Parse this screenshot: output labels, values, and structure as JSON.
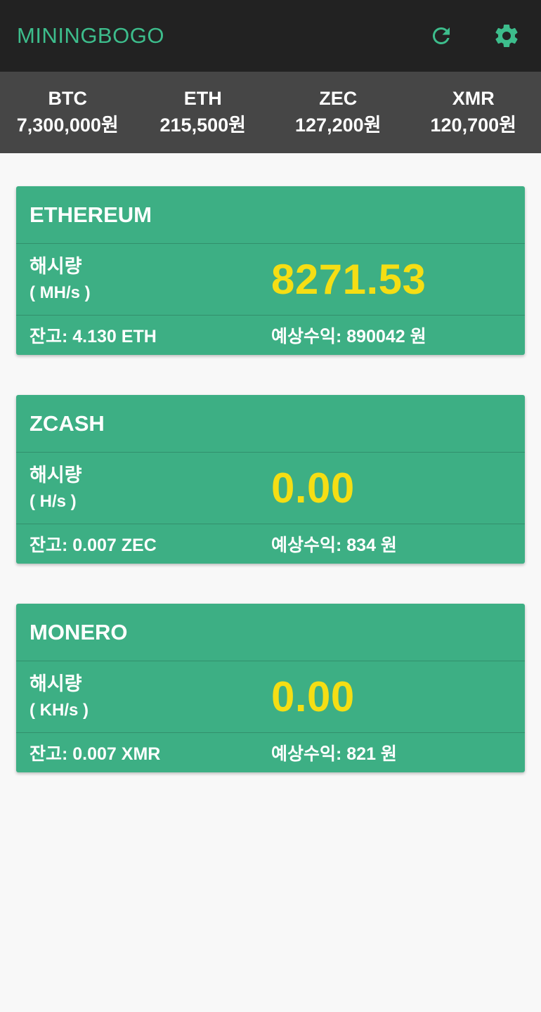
{
  "app": {
    "title": "MININGBOGO",
    "accent_color": "#3dbd8c",
    "refresh_icon": "refresh-icon",
    "settings_icon": "gear-icon"
  },
  "ticker": [
    {
      "symbol": "BTC",
      "price": "7,300,000원"
    },
    {
      "symbol": "ETH",
      "price": "215,500원"
    },
    {
      "symbol": "ZEC",
      "price": "127,200원"
    },
    {
      "symbol": "XMR",
      "price": "120,700원"
    }
  ],
  "cards": [
    {
      "name": "ETHEREUM",
      "hash_label": "해시량",
      "hash_unit": "( MH/s )",
      "hash_value": "8271.53",
      "balance": "잔고: 4.130 ETH",
      "expected_profit": "예상수익: 890042 원"
    },
    {
      "name": "ZCASH",
      "hash_label": "해시량",
      "hash_unit": "( H/s )",
      "hash_value": "0.00",
      "balance": "잔고: 0.007 ZEC",
      "expected_profit": "예상수익: 834 원"
    },
    {
      "name": "MONERO",
      "hash_label": "해시량",
      "hash_unit": "( KH/s )",
      "hash_value": "0.00",
      "balance": "잔고: 0.007 XMR",
      "expected_profit": "예상수익: 821 원"
    }
  ],
  "colors": {
    "appbar_bg": "#222222",
    "ticker_bg": "#464646",
    "card_bg": "#3daf84",
    "hash_value": "#f5de14"
  }
}
